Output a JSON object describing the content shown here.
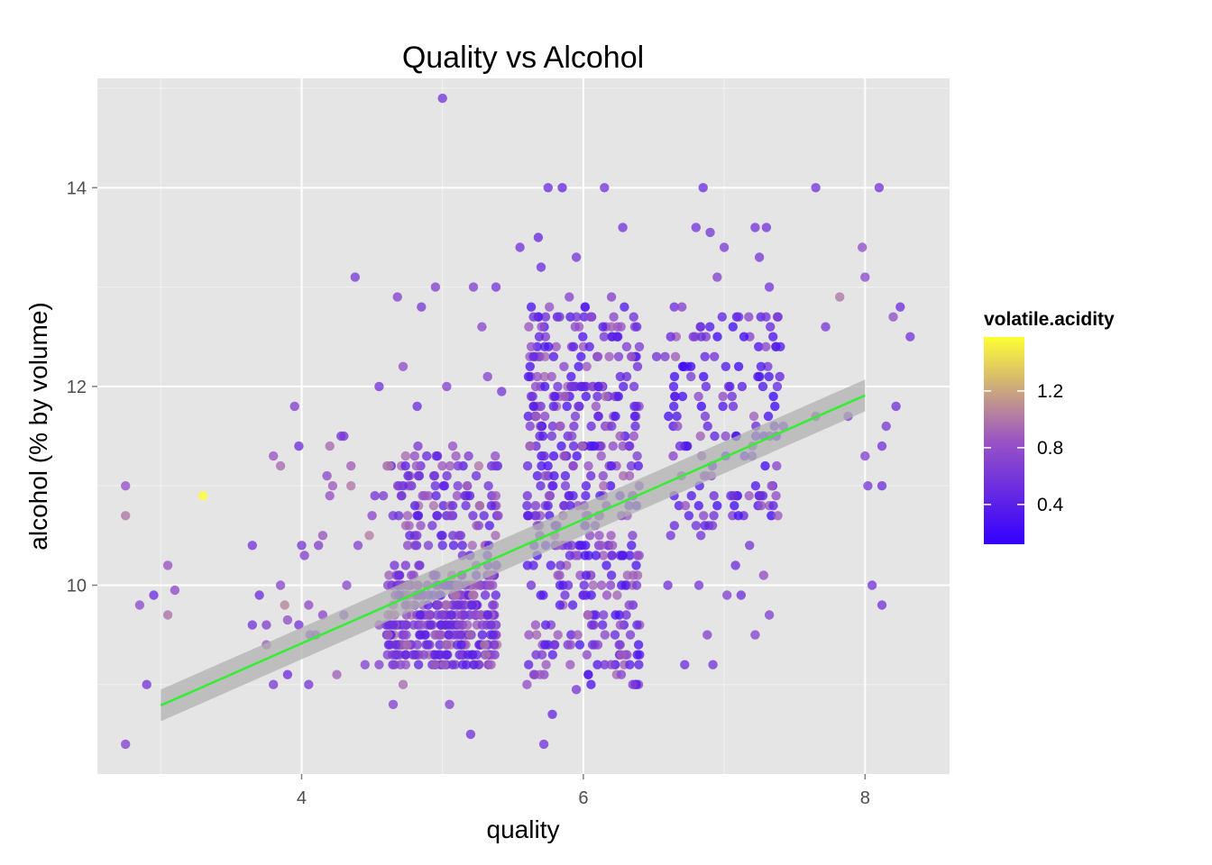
{
  "chart_data": {
    "type": "scatter",
    "title": "Quality vs Alcohol",
    "xlabel": "quality",
    "ylabel": "alcohol (% by volume)",
    "xlim": [
      2.55,
      8.6
    ],
    "ylim": [
      8.1,
      15.1
    ],
    "x_ticks": [
      4,
      6,
      8
    ],
    "y_ticks": [
      10,
      12,
      14
    ],
    "x_tick_labels": [
      "4",
      "6",
      "8"
    ],
    "y_tick_labels": [
      "10",
      "12",
      "14"
    ],
    "grid": true,
    "jitter": "horizontal",
    "color_variable": "volatile.acidity",
    "legend": {
      "title": "volatile.acidity",
      "placement": "right",
      "range": [
        0.12,
        1.58
      ],
      "ticks": [
        0.4,
        0.8,
        1.2
      ],
      "tick_labels": [
        "0.4",
        "0.8",
        "1.2"
      ],
      "low_color": "#3300ff",
      "mid_color": "#9a54c4",
      "high_color": "#ffff33"
    },
    "trend_line": {
      "type": "linear",
      "x": [
        3,
        8
      ],
      "y": [
        8.79,
        11.91
      ],
      "band_halfwidth": [
        0.16,
        0.16
      ],
      "color": "#33ee33",
      "band_color": "#b0b0b0"
    },
    "points": [
      [
        2.75,
        11.0,
        0.82
      ],
      [
        2.75,
        10.7,
        1.0
      ],
      [
        2.85,
        9.8,
        0.78
      ],
      [
        2.9,
        9.0,
        0.6
      ],
      [
        2.75,
        8.4,
        0.7
      ],
      [
        2.95,
        9.9,
        0.55
      ],
      [
        3.05,
        10.2,
        0.85
      ],
      [
        3.05,
        9.7,
        0.98
      ],
      [
        3.1,
        9.95,
        0.78
      ],
      [
        3.3,
        10.9,
        1.58
      ],
      [
        3.65,
        9.6,
        0.6
      ],
      [
        3.65,
        10.4,
        0.6
      ],
      [
        3.7,
        9.9,
        0.55
      ],
      [
        3.75,
        9.4,
        0.9
      ],
      [
        3.75,
        9.6,
        0.7
      ],
      [
        3.8,
        11.3,
        0.85
      ],
      [
        3.8,
        9.0,
        0.65
      ],
      [
        3.85,
        10.0,
        0.75
      ],
      [
        3.85,
        11.2,
        0.95
      ],
      [
        3.88,
        9.8,
        1.05
      ],
      [
        3.9,
        9.1,
        0.55
      ],
      [
        3.95,
        11.8,
        0.7
      ],
      [
        3.98,
        11.4,
        0.55
      ],
      [
        3.98,
        9.6,
        0.6
      ],
      [
        4.05,
        9.8,
        0.8
      ],
      [
        4.05,
        9.0,
        0.62
      ],
      [
        4.1,
        9.5,
        0.6
      ],
      [
        4.12,
        10.4,
        0.7
      ],
      [
        4.15,
        9.7,
        0.75
      ],
      [
        4.18,
        11.1,
        0.78
      ],
      [
        4.2,
        11.4,
        0.95
      ],
      [
        4.2,
        10.9,
        0.82
      ],
      [
        4.22,
        11.0,
        0.88
      ],
      [
        4.25,
        9.1,
        0.9
      ],
      [
        4.28,
        11.5,
        0.6
      ],
      [
        4.3,
        11.5,
        0.6
      ],
      [
        4.3,
        9.7,
        0.72
      ],
      [
        4.32,
        10.0,
        0.78
      ],
      [
        4.35,
        11.0,
        1.0
      ],
      [
        4.35,
        11.2,
        0.9
      ],
      [
        4.38,
        13.1,
        0.65
      ],
      [
        4.4,
        10.4,
        0.72
      ],
      [
        4.45,
        9.2,
        0.72
      ],
      [
        4.48,
        10.5,
        1.02
      ],
      [
        4.5,
        10.7,
        0.75
      ],
      [
        4.52,
        10.9,
        0.6
      ],
      [
        4.55,
        9.6,
        0.8
      ],
      [
        4.55,
        9.2,
        0.7
      ],
      [
        4.55,
        12.0,
        0.58
      ],
      [
        4.58,
        10.9,
        0.65
      ],
      [
        4.62,
        11.2,
        1.05
      ],
      [
        4.02,
        10.3,
        0.7
      ],
      [
        4.06,
        9.5,
        0.68
      ],
      [
        4.0,
        10.4,
        0.62
      ],
      [
        3.9,
        9.65,
        0.8
      ],
      [
        4.15,
        10.5,
        0.85
      ],
      [
        5.0,
        14.9,
        0.6
      ],
      [
        4.68,
        12.9,
        0.7
      ],
      [
        4.72,
        12.2,
        0.8
      ],
      [
        4.82,
        11.8,
        0.55
      ],
      [
        4.85,
        12.8,
        0.65
      ],
      [
        4.95,
        13.0,
        0.7
      ],
      [
        5.03,
        12.0,
        0.7
      ],
      [
        5.22,
        13.0,
        0.7
      ],
      [
        5.28,
        12.6,
        0.75
      ],
      [
        5.32,
        12.1,
        0.72
      ],
      [
        5.38,
        13.0,
        0.62
      ],
      [
        5.42,
        11.95,
        0.62
      ],
      [
        5.2,
        8.5,
        0.6
      ],
      [
        4.65,
        8.8,
        0.7
      ],
      [
        4.72,
        9.0,
        0.95
      ],
      [
        5.05,
        8.8,
        0.7
      ],
      [
        5.55,
        13.4,
        0.58
      ],
      [
        5.68,
        13.5,
        0.5
      ],
      [
        5.7,
        13.2,
        0.55
      ],
      [
        5.75,
        14.0,
        0.55
      ],
      [
        5.85,
        14.0,
        0.5
      ],
      [
        5.95,
        13.3,
        0.62
      ],
      [
        5.9,
        12.9,
        0.72
      ],
      [
        5.72,
        8.4,
        0.6
      ],
      [
        5.78,
        8.7,
        0.5
      ],
      [
        5.6,
        9.0,
        0.8
      ],
      [
        6.15,
        14.0,
        0.6
      ],
      [
        6.28,
        13.6,
        0.6
      ],
      [
        6.05,
        12.7,
        0.78
      ],
      [
        6.2,
        12.9,
        0.7
      ],
      [
        6.38,
        12.6,
        0.5
      ],
      [
        5.95,
        8.95,
        0.62
      ],
      [
        6.52,
        12.3,
        0.58
      ],
      [
        6.58,
        12.3,
        0.65
      ],
      [
        6.62,
        12.5,
        0.5
      ],
      [
        6.65,
        11.9,
        0.35
      ],
      [
        6.7,
        12.8,
        0.7
      ],
      [
        6.78,
        12.5,
        0.6
      ],
      [
        6.85,
        14.0,
        0.55
      ],
      [
        6.9,
        13.55,
        0.62
      ],
      [
        6.95,
        13.1,
        0.7
      ],
      [
        6.8,
        13.6,
        0.6
      ],
      [
        6.72,
        9.2,
        0.55
      ],
      [
        6.92,
        9.2,
        0.6
      ],
      [
        6.6,
        10.0,
        0.58
      ],
      [
        6.62,
        10.5,
        0.6
      ],
      [
        6.82,
        10.0,
        0.62
      ],
      [
        6.88,
        9.5,
        0.7
      ],
      [
        7.0,
        13.4,
        0.65
      ],
      [
        7.02,
        9.9,
        0.7
      ],
      [
        7.08,
        10.2,
        0.55
      ],
      [
        7.12,
        9.9,
        0.55
      ],
      [
        7.18,
        10.4,
        0.62
      ],
      [
        7.22,
        13.6,
        0.6
      ],
      [
        7.25,
        13.3,
        0.62
      ],
      [
        7.3,
        13.6,
        0.6
      ],
      [
        7.32,
        13.0,
        0.62
      ],
      [
        7.32,
        9.7,
        0.7
      ],
      [
        7.22,
        9.5,
        0.72
      ],
      [
        7.28,
        10.1,
        0.8
      ],
      [
        7.42,
        11.6,
        0.55
      ],
      [
        7.65,
        14.0,
        0.6
      ],
      [
        7.65,
        11.7,
        0.7
      ],
      [
        7.72,
        12.6,
        0.62
      ],
      [
        7.82,
        12.9,
        1.0
      ],
      [
        7.88,
        11.7,
        0.7
      ],
      [
        7.98,
        13.4,
        0.8
      ],
      [
        8.0,
        13.1,
        0.78
      ],
      [
        8.0,
        11.3,
        0.72
      ],
      [
        8.02,
        11.0,
        0.62
      ],
      [
        8.05,
        10.0,
        0.6
      ],
      [
        8.1,
        14.0,
        0.6
      ],
      [
        8.12,
        11.4,
        0.6
      ],
      [
        8.12,
        11.0,
        0.55
      ],
      [
        8.12,
        9.8,
        0.6
      ],
      [
        8.2,
        12.7,
        0.8
      ],
      [
        8.22,
        11.8,
        0.58
      ],
      [
        8.25,
        12.8,
        0.55
      ],
      [
        8.32,
        12.5,
        0.6
      ],
      [
        8.15,
        11.6,
        0.65
      ],
      [
        6.2,
        10.1,
        0.4
      ],
      [
        5.8,
        10.6,
        0.45
      ]
    ],
    "dense_groups": [
      {
        "x_range": [
          4.6,
          5.4
        ],
        "y_range": [
          9.2,
          11.4
        ],
        "count": 470,
        "acidity_range": [
          0.38,
          1.02
        ],
        "dense_below": 10.1
      },
      {
        "x_range": [
          5.6,
          6.4
        ],
        "y_range": [
          9.0,
          12.8
        ],
        "count": 420,
        "acidity_range": [
          0.28,
          0.95
        ],
        "dense_below": 0
      },
      {
        "x_range": [
          6.6,
          7.4
        ],
        "y_range": [
          10.5,
          12.8
        ],
        "count": 140,
        "acidity_range": [
          0.2,
          0.9
        ],
        "dense_below": 0
      }
    ]
  }
}
